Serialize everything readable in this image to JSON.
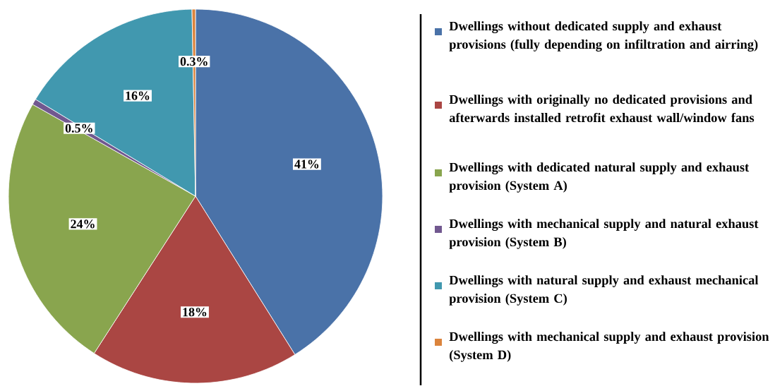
{
  "chart_data": {
    "type": "pie",
    "categories": [
      "Dwellings without dedicated supply and exhaust provisions (fully depending on infiltration and airring)",
      "Dwellings with originally no dedicated provisions and afterwards installed retrofit exhaust wall/window fans",
      "Dwellings with dedicated natural supply and exhaust provision (System A)",
      "Dwellings with mechanical supply and natural exhaust provision (System B)",
      "Dwellings with natural supply and exhaust mechanical provision (System C)",
      "Dwellings with mechanical supply and exhaust provision  (System D)"
    ],
    "values": [
      41,
      18,
      24,
      0.5,
      16,
      0.3
    ],
    "value_labels": [
      "41%",
      "18%",
      "24%",
      "0.5%",
      "16%",
      "0.3%"
    ],
    "colors": [
      "#4a72a8",
      "#aa4643",
      "#89a54e",
      "#71588f",
      "#4198af",
      "#db843d"
    ],
    "legend": "right"
  }
}
